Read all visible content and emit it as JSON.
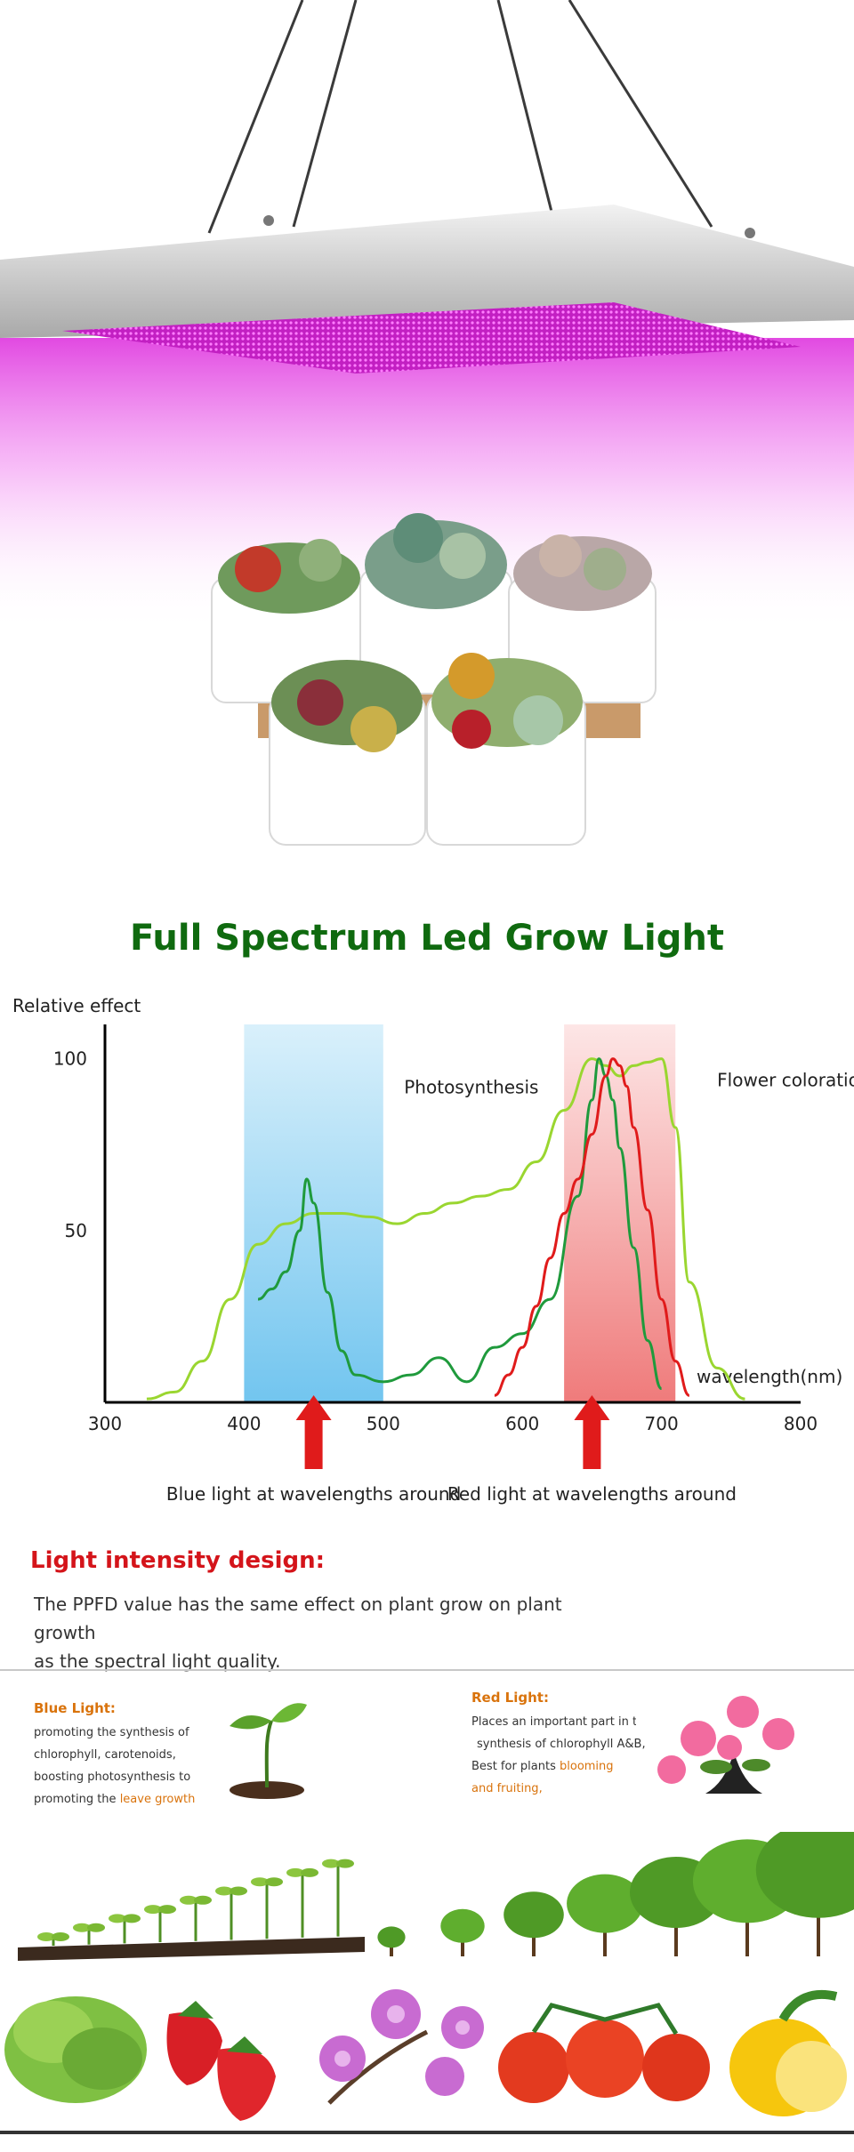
{
  "title": "Full Spectrum Led Grow Light",
  "chart_data": {
    "type": "line",
    "ylabel": "Relative effect",
    "xlabel": "wavelength(nm)",
    "x_ticks": [
      300,
      400,
      500,
      600,
      700,
      800
    ],
    "y_ticks": [
      50,
      100
    ],
    "xlim": [
      300,
      800
    ],
    "ylim": [
      0,
      110
    ],
    "series": [
      {
        "color": "#9ad630",
        "x": [
          330,
          350,
          370,
          390,
          410,
          430,
          450,
          470,
          490,
          510,
          530,
          550,
          570,
          590,
          610,
          630,
          650,
          660,
          670,
          680,
          690,
          700,
          710,
          720,
          740,
          760
        ],
        "y": [
          1,
          3,
          12,
          30,
          46,
          52,
          55,
          55,
          54,
          52,
          55,
          58,
          60,
          62,
          70,
          85,
          100,
          98,
          95,
          98,
          99,
          100,
          80,
          35,
          10,
          1
        ]
      },
      {
        "color": "#1f9a3c",
        "x": [
          410,
          420,
          430,
          440,
          445,
          450,
          460,
          470,
          480,
          500,
          520,
          540,
          560,
          580,
          600,
          620,
          640,
          650,
          655,
          660,
          665,
          670,
          680,
          690,
          700
        ],
        "y": [
          30,
          33,
          38,
          50,
          65,
          58,
          32,
          15,
          8,
          6,
          8,
          13,
          6,
          16,
          20,
          30,
          60,
          88,
          100,
          95,
          88,
          74,
          45,
          18,
          4
        ]
      },
      {
        "color": "#e01b1b",
        "x": [
          580,
          590,
          600,
          610,
          620,
          630,
          640,
          650,
          660,
          665,
          670,
          675,
          680,
          690,
          700,
          710,
          720
        ],
        "y": [
          2,
          8,
          16,
          28,
          42,
          55,
          65,
          78,
          95,
          100,
          98,
          92,
          80,
          56,
          30,
          12,
          2
        ]
      }
    ],
    "bands": [
      {
        "label": "",
        "color": "#8fd1f5",
        "from": 400,
        "to": 500
      },
      {
        "label": "",
        "color": "#f4a5a5",
        "from": 630,
        "to": 710
      }
    ],
    "annotations": [
      {
        "text": "Photosynthesis",
        "x": 515,
        "y": 90
      },
      {
        "text": "Flower coloration",
        "x": 740,
        "y": 92
      }
    ],
    "arrows": [
      {
        "x": 450,
        "text": "Blue light at wavelengths around"
      },
      {
        "x": 650,
        "text": "Red light at wavelengths around"
      }
    ]
  },
  "intensity": {
    "heading": "Light intensity design:",
    "line1": "The PPFD value has the same effect on plant grow on plant growth",
    "line2": "as the spectral light quality."
  },
  "blue_panel": {
    "heading": "Blue Light:",
    "l1": "promoting the synthesis of",
    "l2": "chlorophyll, carotenoids,",
    "l3": "boosting photosynthesis to",
    "l4a": "promoting the ",
    "l4b": "leave growth"
  },
  "red_panel": {
    "heading": "Red Light:",
    "l1": "Places an important part in the",
    "l2": "synthesis of chlorophyll A&B,",
    "l3a": "Best for plants ",
    "l3b": "blooming",
    "l4": "and fruiting,"
  },
  "colors": {
    "accent_green": "#0f6a0f",
    "accent_red": "#d4141a",
    "accent_orange": "#d9730c",
    "led_magenta": "#e040e0"
  },
  "icons": [
    "led-panel",
    "succulent-pots",
    "seedling",
    "flower-pot",
    "growth-sequence",
    "lettuce",
    "strawberry",
    "orchid",
    "tomato",
    "lemon"
  ]
}
